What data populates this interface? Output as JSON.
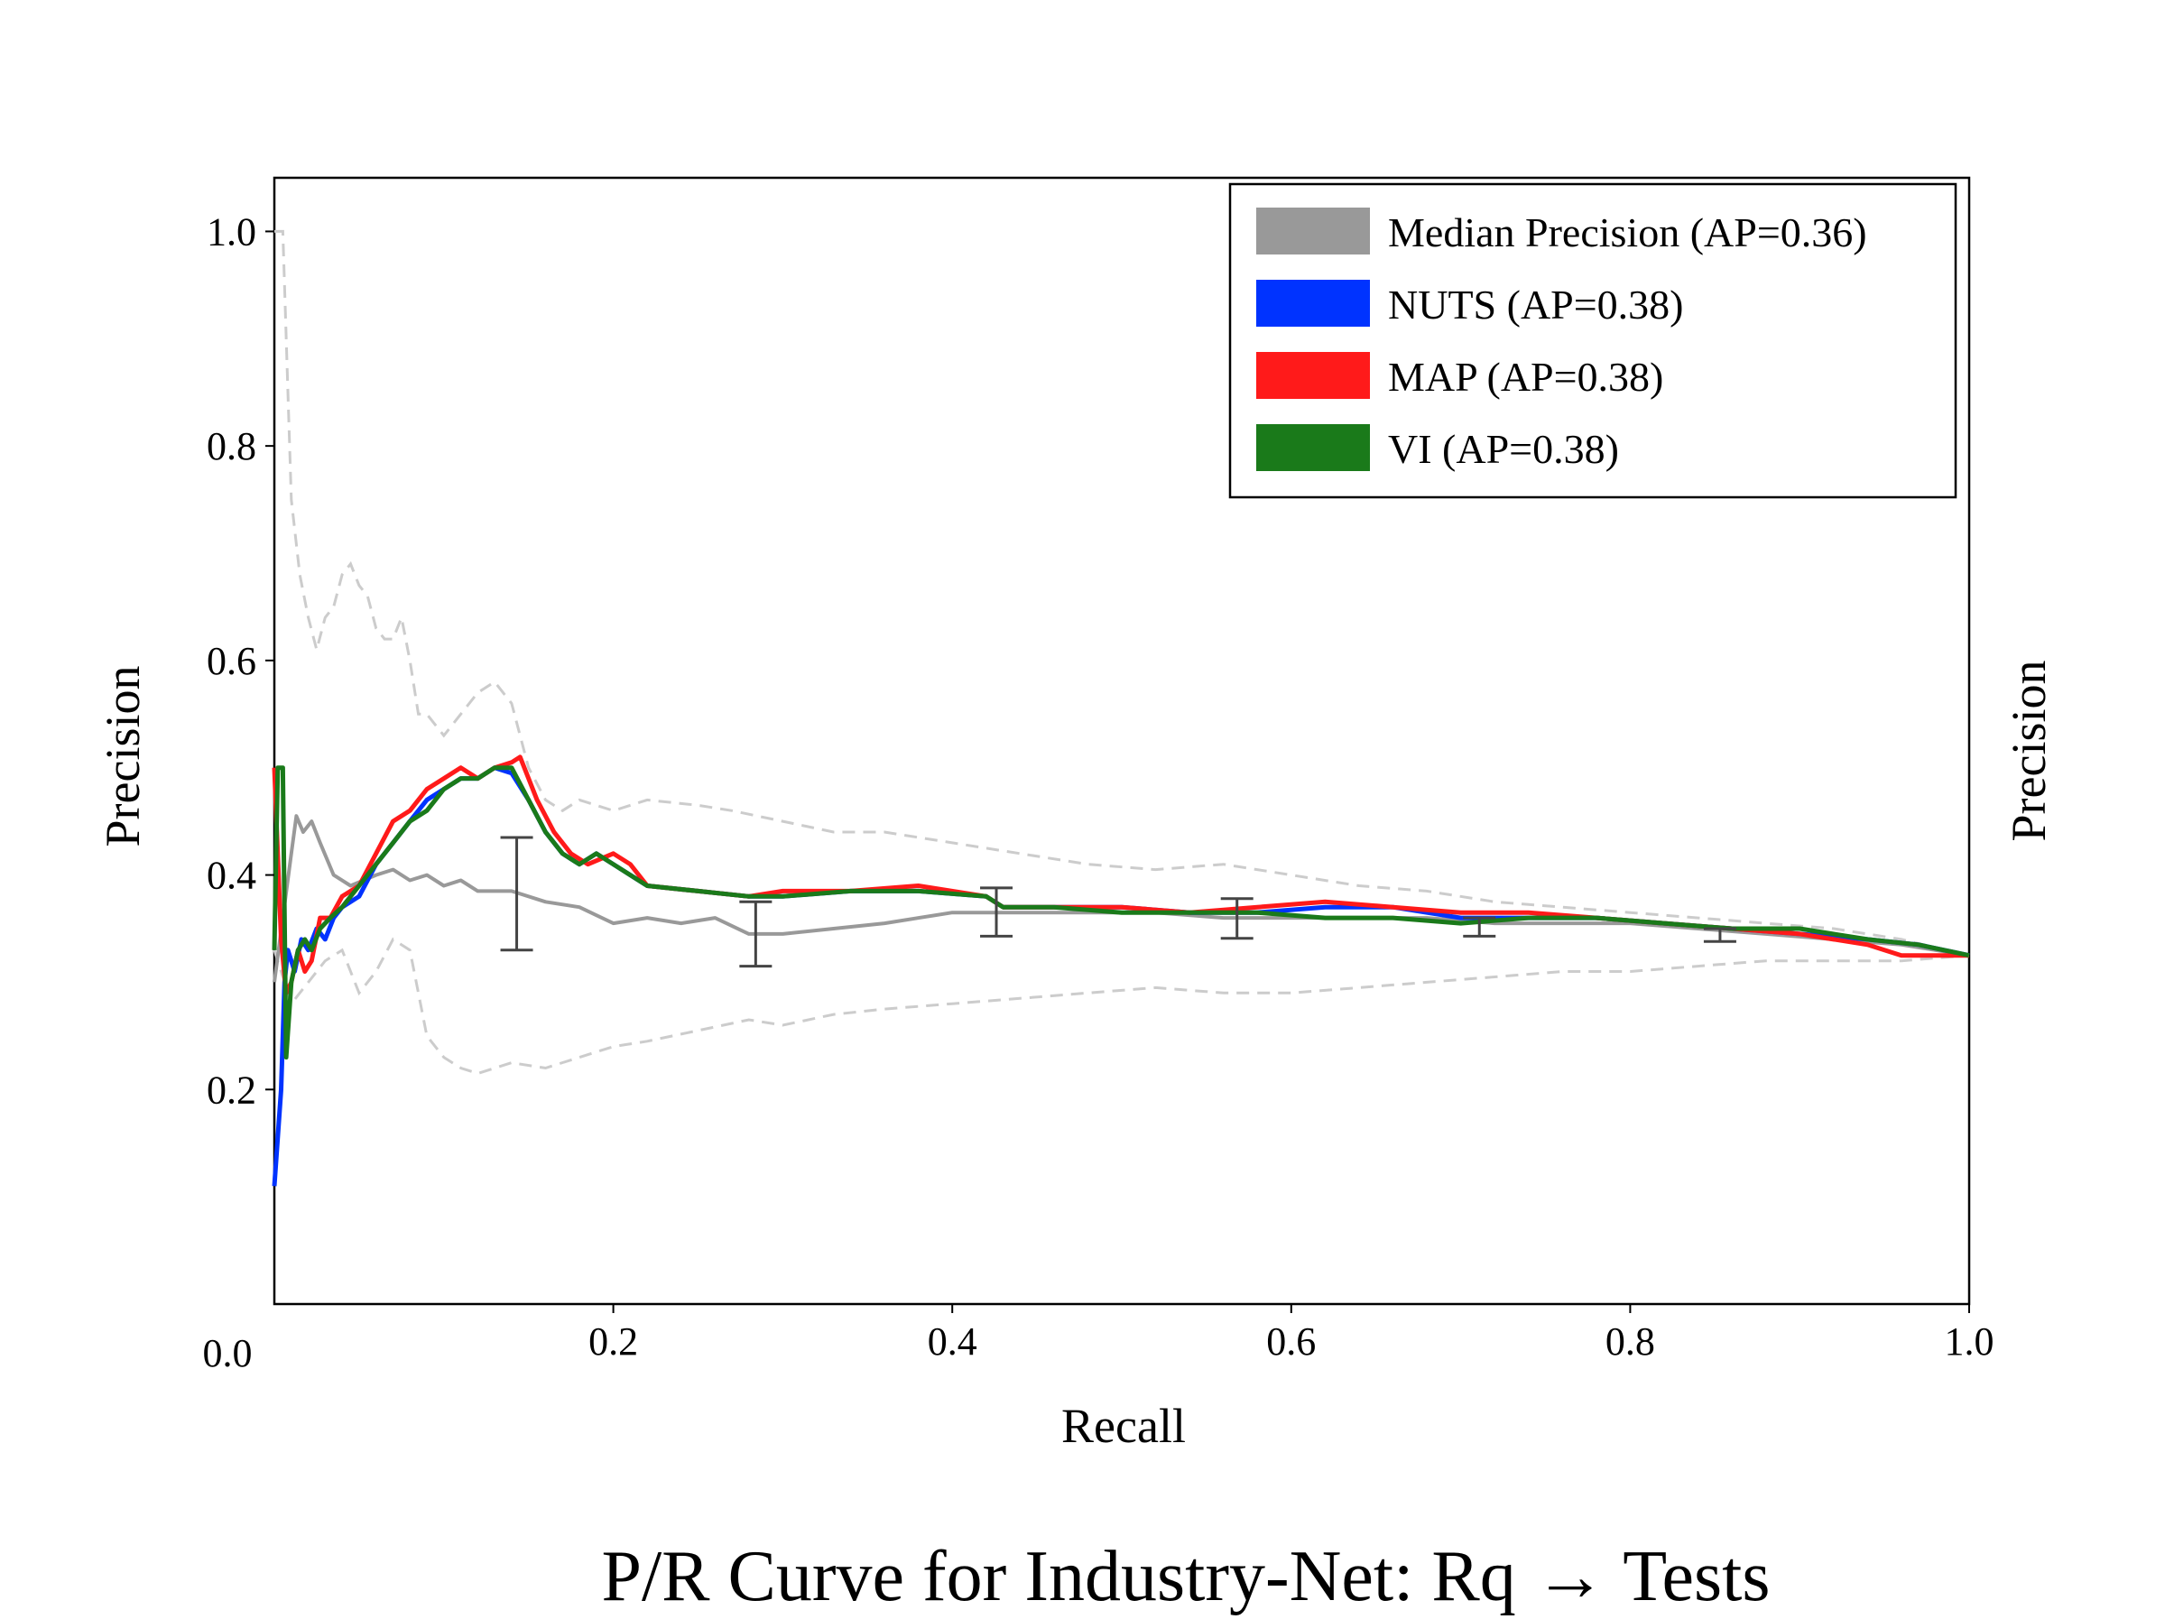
{
  "chart_data": {
    "type": "line",
    "title": "P/R Curve for Industry-Net: Rq → Tests",
    "xlabel": "Recall",
    "ylabel": "Precision",
    "ylabel_right": "Precision",
    "xlim": [
      0.0,
      1.0
    ],
    "ylim": [
      0.0,
      1.05
    ],
    "x_ticks": [
      0.2,
      0.4,
      0.6,
      0.8,
      1.0
    ],
    "x_tick_labels": [
      "0.2",
      "0.4",
      "0.6",
      "0.8",
      "1.0"
    ],
    "x_origin_label": "0.0",
    "y_ticks": [
      0.2,
      0.4,
      0.6,
      0.8,
      1.0
    ],
    "y_tick_labels": [
      "0.2",
      "0.4",
      "0.6",
      "0.8",
      "1.0"
    ],
    "grid": false,
    "legend_position": "top-right",
    "series": [
      {
        "name": "Median Precision (AP=0.36)",
        "color": "#999999",
        "points": [
          [
            0.0,
            0.3
          ],
          [
            0.005,
            0.36
          ],
          [
            0.01,
            0.42
          ],
          [
            0.013,
            0.455
          ],
          [
            0.017,
            0.44
          ],
          [
            0.022,
            0.45
          ],
          [
            0.027,
            0.43
          ],
          [
            0.035,
            0.4
          ],
          [
            0.045,
            0.39
          ],
          [
            0.06,
            0.4
          ],
          [
            0.07,
            0.405
          ],
          [
            0.08,
            0.395
          ],
          [
            0.09,
            0.4
          ],
          [
            0.1,
            0.39
          ],
          [
            0.11,
            0.395
          ],
          [
            0.12,
            0.385
          ],
          [
            0.14,
            0.385
          ],
          [
            0.16,
            0.375
          ],
          [
            0.18,
            0.37
          ],
          [
            0.2,
            0.355
          ],
          [
            0.22,
            0.36
          ],
          [
            0.24,
            0.355
          ],
          [
            0.26,
            0.36
          ],
          [
            0.28,
            0.345
          ],
          [
            0.3,
            0.345
          ],
          [
            0.33,
            0.35
          ],
          [
            0.36,
            0.355
          ],
          [
            0.4,
            0.365
          ],
          [
            0.44,
            0.365
          ],
          [
            0.48,
            0.365
          ],
          [
            0.52,
            0.365
          ],
          [
            0.56,
            0.36
          ],
          [
            0.6,
            0.36
          ],
          [
            0.64,
            0.36
          ],
          [
            0.68,
            0.36
          ],
          [
            0.72,
            0.355
          ],
          [
            0.76,
            0.355
          ],
          [
            0.8,
            0.355
          ],
          [
            0.84,
            0.35
          ],
          [
            0.88,
            0.345
          ],
          [
            0.92,
            0.34
          ],
          [
            0.96,
            0.335
          ],
          [
            1.0,
            0.325
          ]
        ]
      },
      {
        "name": "NUTS (AP=0.38)",
        "color": "#0033ff",
        "points": [
          [
            0.0,
            0.11
          ],
          [
            0.004,
            0.2
          ],
          [
            0.006,
            0.3
          ],
          [
            0.008,
            0.33
          ],
          [
            0.012,
            0.31
          ],
          [
            0.016,
            0.34
          ],
          [
            0.02,
            0.33
          ],
          [
            0.025,
            0.35
          ],
          [
            0.03,
            0.34
          ],
          [
            0.035,
            0.36
          ],
          [
            0.04,
            0.37
          ],
          [
            0.05,
            0.38
          ],
          [
            0.06,
            0.41
          ],
          [
            0.07,
            0.43
          ],
          [
            0.08,
            0.45
          ],
          [
            0.09,
            0.47
          ],
          [
            0.1,
            0.48
          ],
          [
            0.11,
            0.49
          ],
          [
            0.12,
            0.49
          ],
          [
            0.13,
            0.5
          ],
          [
            0.14,
            0.495
          ],
          [
            0.15,
            0.47
          ],
          [
            0.16,
            0.44
          ],
          [
            0.17,
            0.42
          ],
          [
            0.18,
            0.41
          ],
          [
            0.19,
            0.42
          ],
          [
            0.2,
            0.41
          ],
          [
            0.21,
            0.4
          ],
          [
            0.22,
            0.39
          ],
          [
            0.25,
            0.385
          ],
          [
            0.28,
            0.38
          ],
          [
            0.3,
            0.38
          ],
          [
            0.34,
            0.385
          ],
          [
            0.38,
            0.385
          ],
          [
            0.42,
            0.38
          ],
          [
            0.43,
            0.37
          ],
          [
            0.46,
            0.37
          ],
          [
            0.5,
            0.37
          ],
          [
            0.54,
            0.365
          ],
          [
            0.58,
            0.365
          ],
          [
            0.62,
            0.37
          ],
          [
            0.66,
            0.37
          ],
          [
            0.7,
            0.36
          ],
          [
            0.74,
            0.36
          ],
          [
            0.78,
            0.36
          ],
          [
            0.82,
            0.355
          ],
          [
            0.86,
            0.35
          ],
          [
            0.9,
            0.345
          ],
          [
            0.94,
            0.34
          ],
          [
            0.97,
            0.335
          ],
          [
            1.0,
            0.325
          ]
        ]
      },
      {
        "name": "MAP (AP=0.38)",
        "color": "#ff1a1a",
        "points": [
          [
            0.0,
            0.5
          ],
          [
            0.004,
            0.34
          ],
          [
            0.007,
            0.29
          ],
          [
            0.01,
            0.3
          ],
          [
            0.014,
            0.33
          ],
          [
            0.018,
            0.31
          ],
          [
            0.022,
            0.32
          ],
          [
            0.027,
            0.36
          ],
          [
            0.033,
            0.36
          ],
          [
            0.04,
            0.38
          ],
          [
            0.05,
            0.39
          ],
          [
            0.06,
            0.42
          ],
          [
            0.07,
            0.45
          ],
          [
            0.08,
            0.46
          ],
          [
            0.09,
            0.48
          ],
          [
            0.1,
            0.49
          ],
          [
            0.11,
            0.5
          ],
          [
            0.12,
            0.49
          ],
          [
            0.13,
            0.5
          ],
          [
            0.14,
            0.505
          ],
          [
            0.145,
            0.51
          ],
          [
            0.155,
            0.47
          ],
          [
            0.165,
            0.44
          ],
          [
            0.175,
            0.42
          ],
          [
            0.185,
            0.41
          ],
          [
            0.2,
            0.42
          ],
          [
            0.21,
            0.41
          ],
          [
            0.22,
            0.39
          ],
          [
            0.25,
            0.385
          ],
          [
            0.28,
            0.38
          ],
          [
            0.3,
            0.385
          ],
          [
            0.34,
            0.385
          ],
          [
            0.38,
            0.39
          ],
          [
            0.42,
            0.38
          ],
          [
            0.43,
            0.37
          ],
          [
            0.46,
            0.37
          ],
          [
            0.5,
            0.37
          ],
          [
            0.54,
            0.365
          ],
          [
            0.58,
            0.37
          ],
          [
            0.62,
            0.375
          ],
          [
            0.66,
            0.37
          ],
          [
            0.7,
            0.365
          ],
          [
            0.74,
            0.365
          ],
          [
            0.78,
            0.36
          ],
          [
            0.82,
            0.355
          ],
          [
            0.86,
            0.35
          ],
          [
            0.9,
            0.345
          ],
          [
            0.94,
            0.335
          ],
          [
            0.96,
            0.325
          ],
          [
            1.0,
            0.325
          ]
        ]
      },
      {
        "name": "VI (AP=0.38)",
        "color": "#1a7a1a",
        "points": [
          [
            0.0,
            0.33
          ],
          [
            0.002,
            0.5
          ],
          [
            0.005,
            0.5
          ],
          [
            0.007,
            0.23
          ],
          [
            0.01,
            0.3
          ],
          [
            0.014,
            0.33
          ],
          [
            0.018,
            0.34
          ],
          [
            0.022,
            0.33
          ],
          [
            0.027,
            0.35
          ],
          [
            0.033,
            0.36
          ],
          [
            0.04,
            0.37
          ],
          [
            0.05,
            0.39
          ],
          [
            0.06,
            0.41
          ],
          [
            0.07,
            0.43
          ],
          [
            0.08,
            0.45
          ],
          [
            0.09,
            0.46
          ],
          [
            0.1,
            0.48
          ],
          [
            0.11,
            0.49
          ],
          [
            0.12,
            0.49
          ],
          [
            0.13,
            0.5
          ],
          [
            0.14,
            0.5
          ],
          [
            0.15,
            0.47
          ],
          [
            0.16,
            0.44
          ],
          [
            0.17,
            0.42
          ],
          [
            0.18,
            0.41
          ],
          [
            0.19,
            0.42
          ],
          [
            0.2,
            0.41
          ],
          [
            0.21,
            0.4
          ],
          [
            0.22,
            0.39
          ],
          [
            0.25,
            0.385
          ],
          [
            0.28,
            0.38
          ],
          [
            0.3,
            0.38
          ],
          [
            0.34,
            0.385
          ],
          [
            0.38,
            0.385
          ],
          [
            0.42,
            0.38
          ],
          [
            0.43,
            0.37
          ],
          [
            0.46,
            0.37
          ],
          [
            0.5,
            0.365
          ],
          [
            0.54,
            0.365
          ],
          [
            0.58,
            0.365
          ],
          [
            0.62,
            0.36
          ],
          [
            0.66,
            0.36
          ],
          [
            0.7,
            0.355
          ],
          [
            0.74,
            0.36
          ],
          [
            0.78,
            0.36
          ],
          [
            0.82,
            0.355
          ],
          [
            0.86,
            0.35
          ],
          [
            0.9,
            0.35
          ],
          [
            0.94,
            0.34
          ],
          [
            0.97,
            0.335
          ],
          [
            1.0,
            0.325
          ]
        ]
      }
    ],
    "bands": [
      {
        "name": "upper",
        "color": "#cccccc",
        "style": "dashed",
        "points": [
          [
            0.0,
            1.0
          ],
          [
            0.005,
            1.0
          ],
          [
            0.01,
            0.75
          ],
          [
            0.015,
            0.68
          ],
          [
            0.02,
            0.64
          ],
          [
            0.025,
            0.61
          ],
          [
            0.03,
            0.64
          ],
          [
            0.035,
            0.65
          ],
          [
            0.04,
            0.68
          ],
          [
            0.045,
            0.69
          ],
          [
            0.05,
            0.67
          ],
          [
            0.055,
            0.66
          ],
          [
            0.06,
            0.63
          ],
          [
            0.065,
            0.62
          ],
          [
            0.07,
            0.62
          ],
          [
            0.075,
            0.64
          ],
          [
            0.08,
            0.6
          ],
          [
            0.085,
            0.55
          ],
          [
            0.09,
            0.55
          ],
          [
            0.1,
            0.53
          ],
          [
            0.11,
            0.55
          ],
          [
            0.12,
            0.57
          ],
          [
            0.13,
            0.58
          ],
          [
            0.14,
            0.56
          ],
          [
            0.15,
            0.5
          ],
          [
            0.16,
            0.47
          ],
          [
            0.17,
            0.46
          ],
          [
            0.18,
            0.47
          ],
          [
            0.2,
            0.46
          ],
          [
            0.22,
            0.47
          ],
          [
            0.25,
            0.465
          ],
          [
            0.27,
            0.46
          ],
          [
            0.3,
            0.45
          ],
          [
            0.33,
            0.44
          ],
          [
            0.36,
            0.44
          ],
          [
            0.4,
            0.43
          ],
          [
            0.44,
            0.42
          ],
          [
            0.48,
            0.41
          ],
          [
            0.52,
            0.405
          ],
          [
            0.56,
            0.41
          ],
          [
            0.6,
            0.4
          ],
          [
            0.64,
            0.39
          ],
          [
            0.68,
            0.385
          ],
          [
            0.72,
            0.375
          ],
          [
            0.76,
            0.37
          ],
          [
            0.8,
            0.365
          ],
          [
            0.84,
            0.36
          ],
          [
            0.88,
            0.355
          ],
          [
            0.92,
            0.35
          ],
          [
            0.96,
            0.34
          ],
          [
            1.0,
            0.325
          ]
        ]
      },
      {
        "name": "lower",
        "color": "#cccccc",
        "style": "dashed",
        "points": [
          [
            0.0,
            0.33
          ],
          [
            0.01,
            0.28
          ],
          [
            0.02,
            0.3
          ],
          [
            0.03,
            0.32
          ],
          [
            0.04,
            0.33
          ],
          [
            0.05,
            0.29
          ],
          [
            0.06,
            0.31
          ],
          [
            0.07,
            0.34
          ],
          [
            0.08,
            0.33
          ],
          [
            0.085,
            0.29
          ],
          [
            0.09,
            0.25
          ],
          [
            0.1,
            0.23
          ],
          [
            0.11,
            0.22
          ],
          [
            0.12,
            0.215
          ],
          [
            0.13,
            0.22
          ],
          [
            0.14,
            0.225
          ],
          [
            0.16,
            0.22
          ],
          [
            0.18,
            0.23
          ],
          [
            0.2,
            0.24
          ],
          [
            0.22,
            0.245
          ],
          [
            0.25,
            0.255
          ],
          [
            0.28,
            0.265
          ],
          [
            0.3,
            0.26
          ],
          [
            0.33,
            0.27
          ],
          [
            0.36,
            0.275
          ],
          [
            0.4,
            0.28
          ],
          [
            0.44,
            0.285
          ],
          [
            0.48,
            0.29
          ],
          [
            0.52,
            0.295
          ],
          [
            0.56,
            0.29
          ],
          [
            0.6,
            0.29
          ],
          [
            0.64,
            0.295
          ],
          [
            0.68,
            0.3
          ],
          [
            0.72,
            0.305
          ],
          [
            0.76,
            0.31
          ],
          [
            0.8,
            0.31
          ],
          [
            0.84,
            0.315
          ],
          [
            0.88,
            0.32
          ],
          [
            0.92,
            0.32
          ],
          [
            0.96,
            0.32
          ],
          [
            1.0,
            0.325
          ]
        ]
      }
    ],
    "error_bars": {
      "color": "#444444",
      "items": [
        {
          "x": 0.143,
          "low": 0.33,
          "high": 0.435
        },
        {
          "x": 0.284,
          "low": 0.315,
          "high": 0.375
        },
        {
          "x": 0.426,
          "low": 0.343,
          "high": 0.388
        },
        {
          "x": 0.568,
          "low": 0.341,
          "high": 0.378
        },
        {
          "x": 0.711,
          "low": 0.343,
          "high": 0.36
        },
        {
          "x": 0.853,
          "low": 0.338,
          "high": 0.35
        }
      ]
    }
  }
}
